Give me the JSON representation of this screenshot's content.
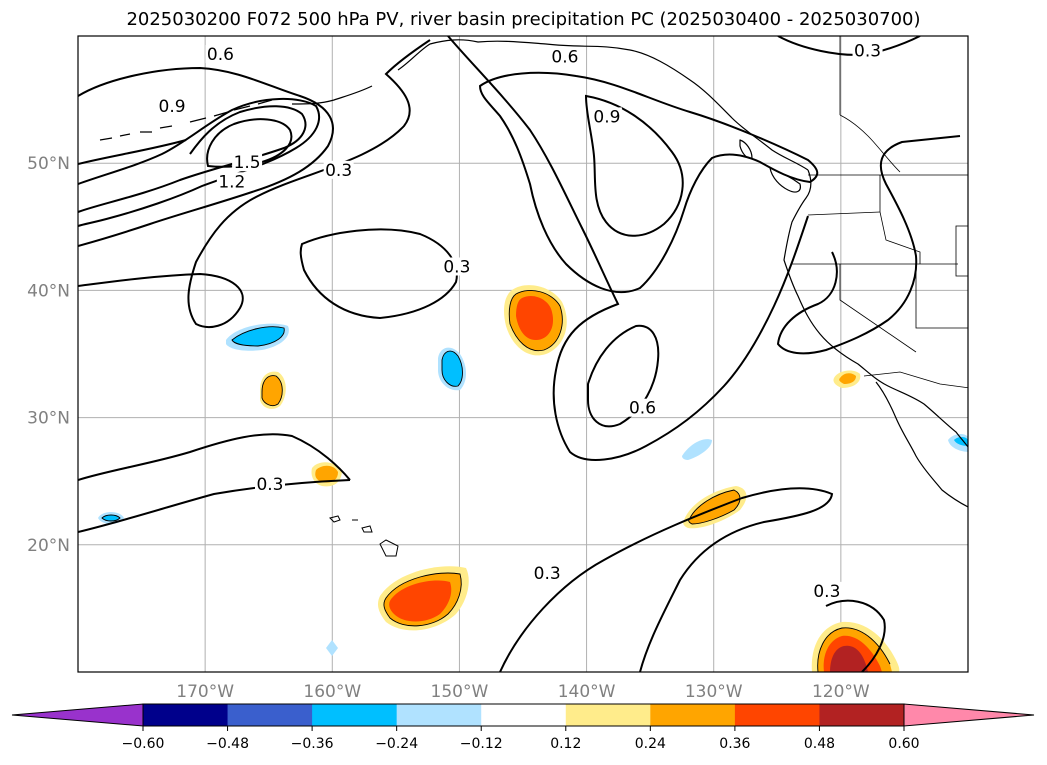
{
  "title": "2025030200 F072 500 hPa PV, river basin precipitation PC (2025030400 - 2025030700)",
  "colors": {
    "contour": "#000000",
    "gridline": "#b0b0b0",
    "coast": "#000000"
  },
  "map": {
    "lon_range": [
      -180,
      -110
    ],
    "lat_range": [
      10,
      60
    ],
    "lon_ticks": [
      {
        "value": -170,
        "label": "170°W"
      },
      {
        "value": -160,
        "label": "160°W"
      },
      {
        "value": -150,
        "label": "150°W"
      },
      {
        "value": -140,
        "label": "140°W"
      },
      {
        "value": -130,
        "label": "130°W"
      },
      {
        "value": -120,
        "label": "120°W"
      }
    ],
    "lat_ticks": [
      {
        "value": 50,
        "label": "50°N"
      },
      {
        "value": 40,
        "label": "40°N"
      },
      {
        "value": 30,
        "label": "30°N"
      },
      {
        "value": 20,
        "label": "20°N"
      }
    ],
    "contour_labels": [
      {
        "text": "0.6",
        "lon": -168.8,
        "lat": 58.5
      },
      {
        "text": "0.9",
        "lon": -172.6,
        "lat": 54.4
      },
      {
        "text": "1.5",
        "lon": -166.7,
        "lat": 50.0
      },
      {
        "text": "1.2",
        "lon": -167.9,
        "lat": 48.5
      },
      {
        "text": "0.3",
        "lon": -159.5,
        "lat": 49.4
      },
      {
        "text": "0.3",
        "lon": -150.2,
        "lat": 41.8
      },
      {
        "text": "0.6",
        "lon": -141.7,
        "lat": 58.3
      },
      {
        "text": "0.9",
        "lon": -138.4,
        "lat": 53.6
      },
      {
        "text": "0.3",
        "lon": -117.9,
        "lat": 58.8
      },
      {
        "text": "0.6",
        "lon": -135.6,
        "lat": 30.7
      },
      {
        "text": "0.3",
        "lon": -164.9,
        "lat": 24.7
      },
      {
        "text": "0.3",
        "lon": -143.1,
        "lat": 17.7
      },
      {
        "text": "0.3",
        "lon": -121.1,
        "lat": 16.3
      }
    ]
  },
  "colorbar": {
    "levels": [
      "−0.60",
      "−0.48",
      "−0.36",
      "−0.24",
      "−0.12",
      "0.12",
      "0.24",
      "0.36",
      "0.48",
      "0.60"
    ],
    "under_color": "#9932cc",
    "over_color": "#ff88aa",
    "colors": [
      "#00008b",
      "#3a5fcd",
      "#00bfff",
      "#b0e2ff",
      "#ffffff",
      "#ffec8b",
      "#ffa500",
      "#ff4500",
      "#b22222"
    ]
  }
}
